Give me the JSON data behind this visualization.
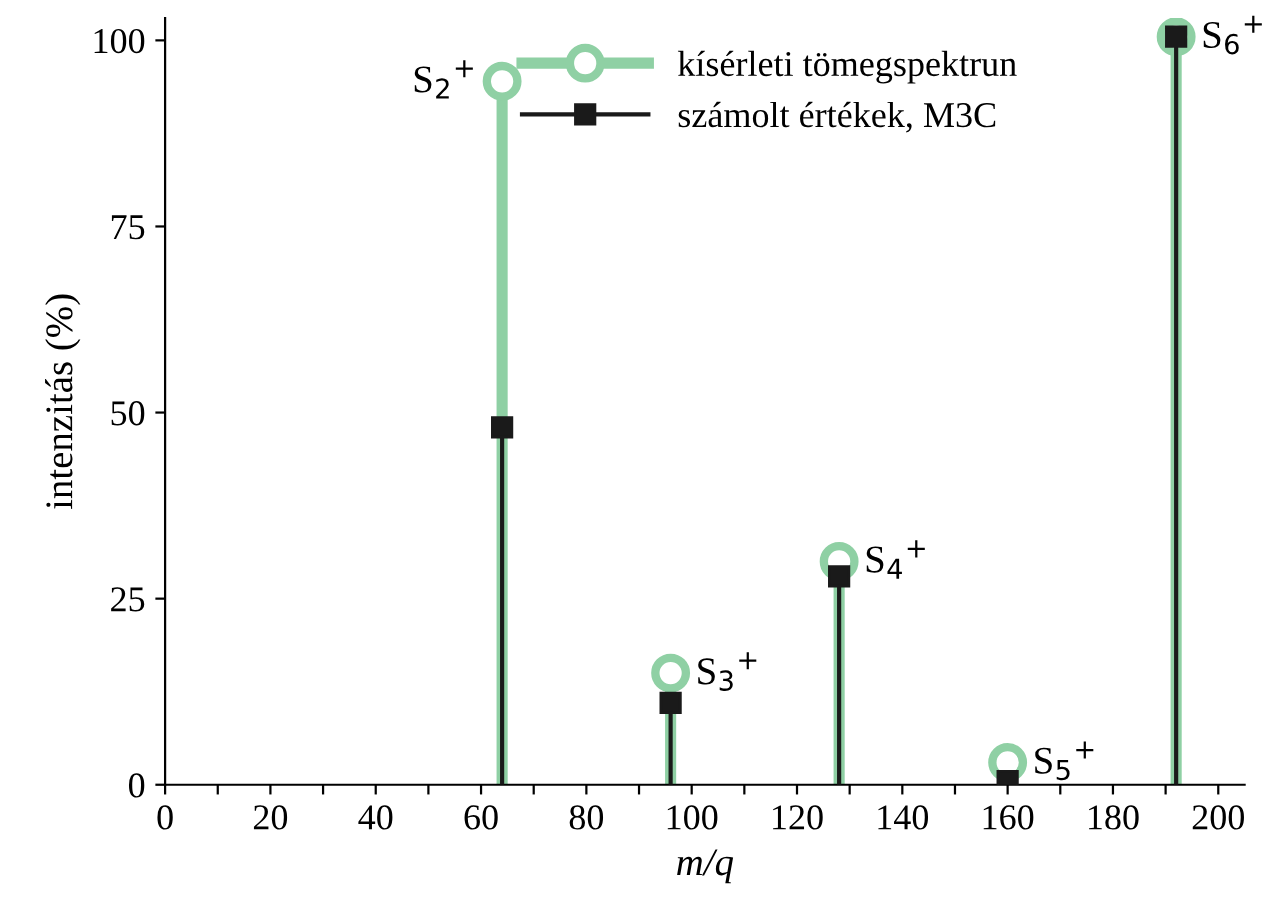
{
  "chart_data": {
    "type": "lollipop",
    "xlabel": "m/q",
    "ylabel": "intenzitás (%)",
    "xlim": [
      0,
      205
    ],
    "ylim": [
      0,
      103
    ],
    "xticks": [
      0,
      {
        "value": 10,
        "label": null
      },
      20,
      {
        "value": 30,
        "label": null
      },
      40,
      {
        "value": 50,
        "label": null
      },
      60,
      {
        "value": 70,
        "label": null
      },
      80,
      {
        "value": 90,
        "label": null
      },
      100,
      {
        "value": 110,
        "label": null
      },
      120,
      {
        "value": 130,
        "label": null
      },
      140,
      {
        "value": 150,
        "label": null
      },
      160,
      {
        "value": 170,
        "label": null
      },
      180,
      {
        "value": 190,
        "label": null
      },
      200
    ],
    "yticks": [
      0,
      25,
      50,
      75,
      100
    ],
    "grid": false,
    "legend": "top",
    "series": [
      {
        "name": "kísérleti tömegspektrun",
        "color": "#8fd0a4",
        "marker": "circle",
        "x": [
          64,
          96,
          128,
          160,
          192
        ],
        "values": [
          94.5,
          15,
          30,
          3,
          100.5
        ]
      },
      {
        "name": "számolt értékek, M3C",
        "color": "#1a1a1a",
        "marker": "square",
        "x": [
          64,
          96,
          128,
          160,
          192
        ],
        "values": [
          48,
          11,
          28,
          0.5,
          100.5
        ]
      }
    ],
    "annotations": [
      {
        "text": "S$_{2}$$^{+}$",
        "x": 64,
        "y": 94.5
      },
      {
        "text": "S$_{3}$$^{+}$",
        "x": 96,
        "y": 15
      },
      {
        "text": "S$_{4}$$^{+}$",
        "x": 128,
        "y": 30
      },
      {
        "text": "S$_{5}$$^{+}$",
        "x": 160,
        "y": 3
      },
      {
        "text": "S$_{6}$$^{+}$",
        "x": 192,
        "y": 100.5
      }
    ]
  }
}
